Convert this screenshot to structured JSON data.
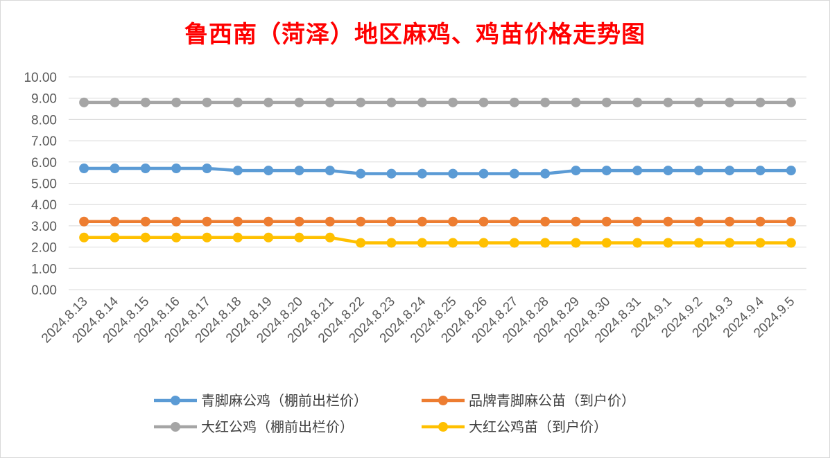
{
  "chart_data": {
    "type": "line",
    "title": "鲁西南（菏泽）地区麻鸡、鸡苗价格走势图",
    "categories": [
      "2024.8.13",
      "2024.8.14",
      "2024.8.15",
      "2024.8.16",
      "2024.8.17",
      "2024.8.18",
      "2024.8.19",
      "2024.8.20",
      "2024.8.21",
      "2024.8.22",
      "2024.8.23",
      "2024.8.24",
      "2024.8.25",
      "2024.8.26",
      "2024.8.27",
      "2024.8.28",
      "2024.8.29",
      "2024.8.30",
      "2024.8.31",
      "2024.9.1",
      "2024.9.2",
      "2024.9.3",
      "2024.9.4",
      "2024.9.5"
    ],
    "ylim": [
      0,
      10
    ],
    "yticks": [
      "0.00",
      "1.00",
      "2.00",
      "3.00",
      "4.00",
      "5.00",
      "6.00",
      "7.00",
      "8.00",
      "9.00",
      "10.00"
    ],
    "grid": true,
    "legend_position": "bottom",
    "series": [
      {
        "name": "青脚麻公鸡（棚前出栏价）",
        "color": "#5b9bd5",
        "values": [
          5.7,
          5.7,
          5.7,
          5.7,
          5.7,
          5.6,
          5.6,
          5.6,
          5.6,
          5.45,
          5.45,
          5.45,
          5.45,
          5.45,
          5.45,
          5.45,
          5.6,
          5.6,
          5.6,
          5.6,
          5.6,
          5.6,
          5.6,
          5.6
        ]
      },
      {
        "name": "品牌青脚麻公苗（到户价）",
        "color": "#ed7d31",
        "values": [
          3.2,
          3.2,
          3.2,
          3.2,
          3.2,
          3.2,
          3.2,
          3.2,
          3.2,
          3.2,
          3.2,
          3.2,
          3.2,
          3.2,
          3.2,
          3.2,
          3.2,
          3.2,
          3.2,
          3.2,
          3.2,
          3.2,
          3.2,
          3.2
        ]
      },
      {
        "name": "大红公鸡（棚前出栏价）",
        "color": "#a5a5a5",
        "values": [
          8.8,
          8.8,
          8.8,
          8.8,
          8.8,
          8.8,
          8.8,
          8.8,
          8.8,
          8.8,
          8.8,
          8.8,
          8.8,
          8.8,
          8.8,
          8.8,
          8.8,
          8.8,
          8.8,
          8.8,
          8.8,
          8.8,
          8.8,
          8.8
        ]
      },
      {
        "name": "大红公鸡苗（到户价）",
        "color": "#ffc000",
        "values": [
          2.45,
          2.45,
          2.45,
          2.45,
          2.45,
          2.45,
          2.45,
          2.45,
          2.45,
          2.2,
          2.2,
          2.2,
          2.2,
          2.2,
          2.2,
          2.2,
          2.2,
          2.2,
          2.2,
          2.2,
          2.2,
          2.2,
          2.2,
          2.2
        ]
      }
    ]
  }
}
